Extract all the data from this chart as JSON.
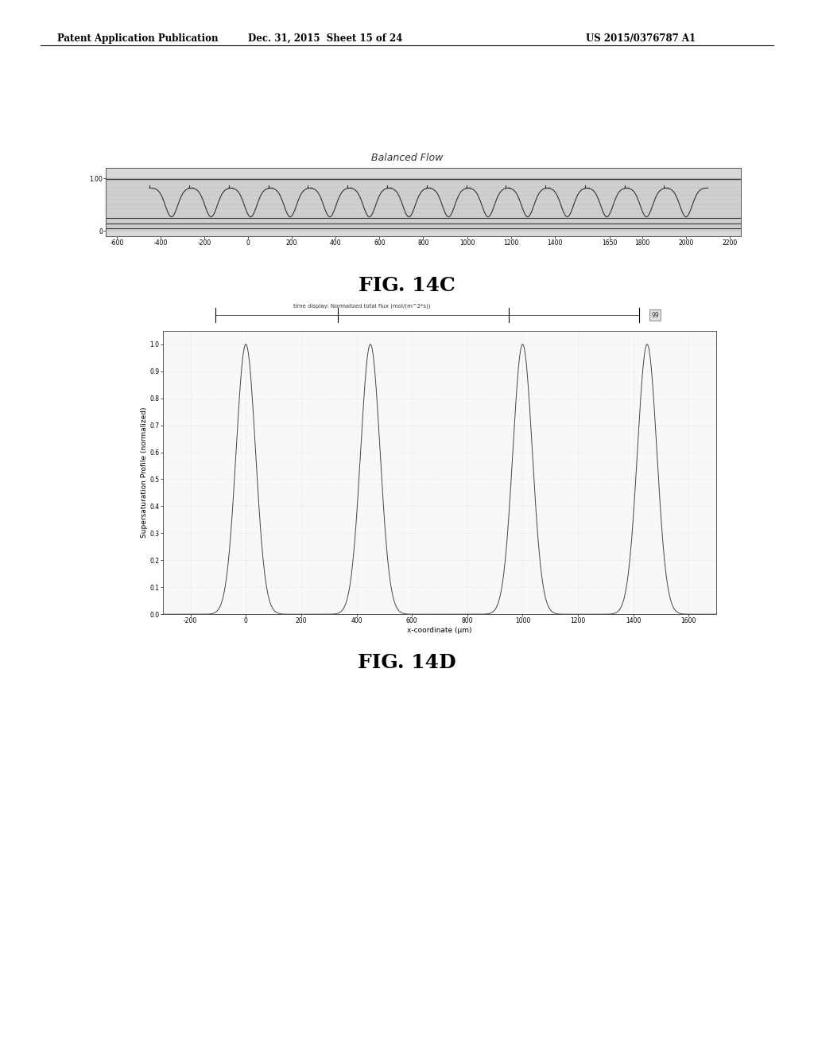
{
  "background_color": "#ffffff",
  "header_left": "Patent Application Publication",
  "header_center": "Dec. 31, 2015  Sheet 15 of 24",
  "header_right": "US 2015/0376787 A1",
  "fig14c_title": "Balanced Flow",
  "fig14c_xlabel_vals": [
    -600,
    -400,
    -200,
    0,
    200,
    400,
    600,
    800,
    1000,
    1200,
    1400,
    1650,
    1800,
    2000,
    2200
  ],
  "fig14c_xlabel_ticks": [
    "-600",
    "-400",
    "-200",
    "0",
    "200",
    "400",
    "600",
    "800",
    "1000",
    "1200",
    "1400",
    "1650",
    "1800",
    "2000",
    "2200"
  ],
  "fig14c_xlim": [
    -650,
    2250
  ],
  "fig14c_ylim": [
    -0.1,
    1.2
  ],
  "fig14c_label": "FIG. 14C",
  "fig14d_ylabel": "Supersaturation Profile (normalized)",
  "fig14d_xlabel": "x-coordinate (μm)",
  "fig14d_label": "FIG. 14D",
  "fig14d_xlim": [
    -300,
    1700
  ],
  "fig14d_ylim": [
    0,
    1.05
  ],
  "fig14d_xticks": [
    -200,
    0,
    200,
    400,
    600,
    800,
    1000,
    1200,
    1400,
    1600
  ],
  "fig14d_xtick_labels": [
    "-200",
    "0",
    "200",
    "400",
    "600",
    "800",
    "1000",
    "1200",
    "1400",
    "1600"
  ],
  "peak_centers": [
    0,
    450,
    1000,
    1450
  ],
  "peak_sigma": 35,
  "annotation_text": "time display: Normalized total flux (mol/(m^2*s))",
  "marker_val": "99",
  "fig_label_fontsize": 18,
  "line_color": "#444444",
  "grid_color": "#cccccc"
}
